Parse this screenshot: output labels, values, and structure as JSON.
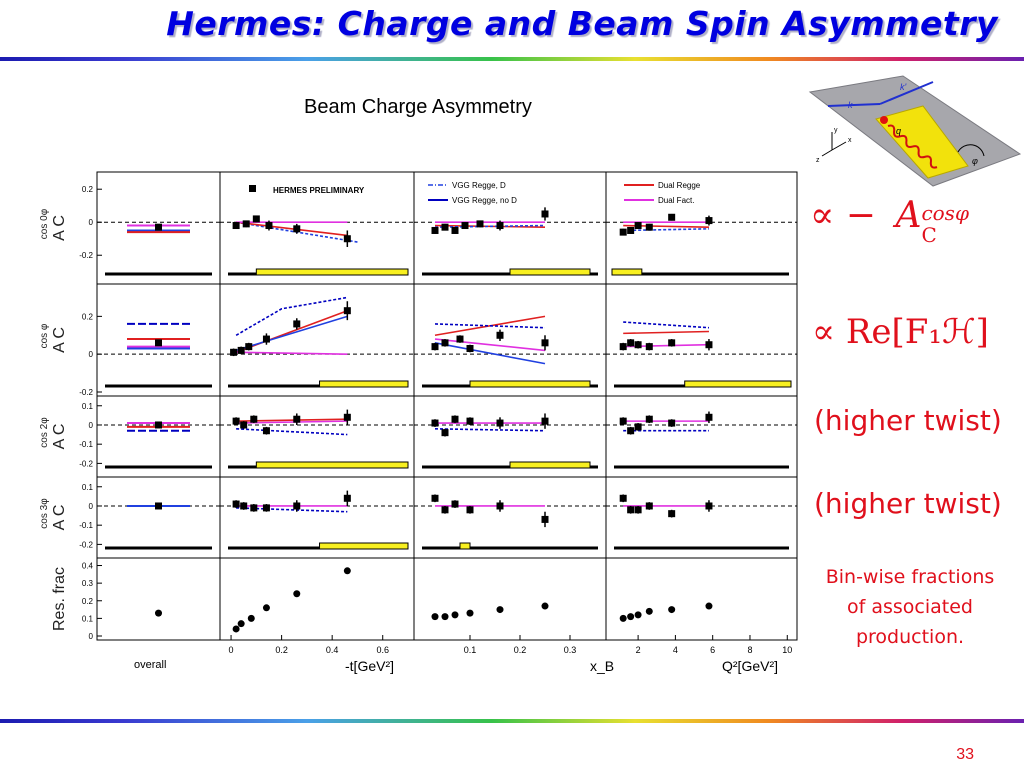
{
  "slide": {
    "title": "Hermes: Charge and Beam Spin Asymmetry",
    "subtitle": "Beam Charge Asymmetry",
    "page_number": "33"
  },
  "annotations": {
    "row1_formula_prefix": "∝ −",
    "row1_formula_symbol": "A",
    "row1_formula_sup": "cosφ",
    "row1_formula_sub": "C",
    "row2_formula": "∝  Re[F₁ℋ]",
    "row3": "(higher twist)",
    "row4": "(higher twist)",
    "row5_line1": "Bin-wise fractions",
    "row5_line2": "of associated",
    "row5_line3": "production."
  },
  "figure": {
    "preliminary_label": "HERMES PRELIMINARY",
    "legend_col2_a": "VGG Regge, D",
    "legend_col2_b": "VGG Regge, no D",
    "legend_col3_a": "Dual Regge",
    "legend_col3_b": "Dual Fact.",
    "row_labels": [
      {
        "base": "A",
        "sub": "C",
        "sup": "cos 0φ"
      },
      {
        "base": "A",
        "sub": "C",
        "sup": "cos φ"
      },
      {
        "base": "A",
        "sub": "C",
        "sup": "cos 2φ"
      },
      {
        "base": "A",
        "sub": "C",
        "sup": "cos 3φ"
      },
      {
        "base": "Res. frac",
        "sub": "",
        "sup": ""
      }
    ],
    "x_axis_labels": [
      "overall",
      "-t[GeV²]",
      "x_B",
      "Q²[GeV²]"
    ],
    "x_ticks": [
      [],
      [
        "0",
        "0.2",
        "0.4",
        "0.6"
      ],
      [
        "0.1",
        "0.2",
        "0.3"
      ],
      [
        "2",
        "4",
        "6",
        "8",
        "10"
      ]
    ]
  },
  "chart_data": {
    "type": "scatter",
    "panels_layout": "5 rows × 4 columns",
    "rows": [
      {
        "quantity": "A_C^cos0φ",
        "y_ticks": [
          "0.2",
          "0",
          "-0.2"
        ],
        "ylim": [
          -0.35,
          0.28
        ],
        "columns": [
          {
            "x": [
              0.5
            ],
            "y": [
              -0.03
            ],
            "yerr": [
              0.01
            ]
          },
          {
            "x": [
              0.02,
              0.06,
              0.1,
              0.15,
              0.26,
              0.46
            ],
            "y": [
              -0.02,
              -0.01,
              0.02,
              -0.02,
              -0.04,
              -0.1
            ],
            "yerr": [
              0.02,
              0.02,
              0.02,
              0.03,
              0.03,
              0.05
            ]
          },
          {
            "x": [
              0.03,
              0.05,
              0.07,
              0.09,
              0.12,
              0.16,
              0.25
            ],
            "y": [
              -0.05,
              -0.03,
              -0.05,
              -0.02,
              -0.01,
              -0.02,
              0.05
            ],
            "yerr": [
              0.02,
              0.02,
              0.02,
              0.02,
              0.02,
              0.03,
              0.04
            ]
          },
          {
            "x": [
              1.2,
              1.6,
              2.0,
              2.6,
              3.8,
              5.8
            ],
            "y": [
              -0.06,
              -0.05,
              -0.02,
              -0.03,
              0.03,
              0.01
            ],
            "yerr": [
              0.02,
              0.02,
              0.02,
              0.02,
              0.02,
              0.03
            ]
          }
        ]
      },
      {
        "quantity": "A_C^cosφ",
        "y_ticks": [
          "0.2",
          "0",
          "-0.2"
        ],
        "ylim": [
          -0.2,
          0.35
        ],
        "columns": [
          {
            "x": [
              0.5
            ],
            "y": [
              0.06
            ],
            "yerr": [
              0.01
            ]
          },
          {
            "x": [
              0.01,
              0.04,
              0.07,
              0.14,
              0.26,
              0.46
            ],
            "y": [
              0.01,
              0.02,
              0.04,
              0.08,
              0.16,
              0.23
            ],
            "yerr": [
              0.02,
              0.02,
              0.02,
              0.03,
              0.03,
              0.05
            ]
          },
          {
            "x": [
              0.03,
              0.05,
              0.08,
              0.1,
              0.16,
              0.25
            ],
            "y": [
              0.04,
              0.06,
              0.08,
              0.03,
              0.1,
              0.06
            ],
            "yerr": [
              0.02,
              0.02,
              0.02,
              0.02,
              0.03,
              0.04
            ]
          },
          {
            "x": [
              1.2,
              1.6,
              2.0,
              2.6,
              3.8,
              5.8
            ],
            "y": [
              0.04,
              0.06,
              0.05,
              0.04,
              0.06,
              0.05
            ],
            "yerr": [
              0.02,
              0.02,
              0.02,
              0.02,
              0.02,
              0.03
            ]
          }
        ]
      },
      {
        "quantity": "A_C^cos2φ",
        "y_ticks": [
          "0.1",
          "0",
          "-0.1",
          "-0.2"
        ],
        "ylim": [
          -0.25,
          0.13
        ],
        "columns": [
          {
            "x": [
              0.5
            ],
            "y": [
              0.0
            ],
            "yerr": [
              0.01
            ]
          },
          {
            "x": [
              0.02,
              0.05,
              0.09,
              0.14,
              0.26,
              0.46
            ],
            "y": [
              0.02,
              0.0,
              0.03,
              -0.03,
              0.03,
              0.04
            ],
            "yerr": [
              0.02,
              0.02,
              0.02,
              0.02,
              0.03,
              0.04
            ]
          },
          {
            "x": [
              0.03,
              0.05,
              0.07,
              0.1,
              0.16,
              0.25
            ],
            "y": [
              0.01,
              -0.04,
              0.03,
              0.02,
              0.01,
              0.02
            ],
            "yerr": [
              0.02,
              0.02,
              0.02,
              0.02,
              0.03,
              0.04
            ]
          },
          {
            "x": [
              1.2,
              1.6,
              2.0,
              2.6,
              3.8,
              5.8
            ],
            "y": [
              0.02,
              -0.03,
              -0.01,
              0.03,
              0.01,
              0.04
            ],
            "yerr": [
              0.02,
              0.02,
              0.02,
              0.02,
              0.02,
              0.03
            ]
          }
        ]
      },
      {
        "quantity": "A_C^cos3φ",
        "y_ticks": [
          "0.1",
          "0",
          "-0.1",
          "-0.2"
        ],
        "ylim": [
          -0.25,
          0.13
        ],
        "columns": [
          {
            "x": [
              0.5
            ],
            "y": [
              0.0
            ],
            "yerr": [
              0.01
            ]
          },
          {
            "x": [
              0.02,
              0.05,
              0.09,
              0.14,
              0.26,
              0.46
            ],
            "y": [
              0.01,
              0.0,
              -0.01,
              -0.01,
              0.0,
              0.04
            ],
            "yerr": [
              0.02,
              0.02,
              0.02,
              0.02,
              0.03,
              0.04
            ]
          },
          {
            "x": [
              0.03,
              0.05,
              0.07,
              0.1,
              0.16,
              0.25
            ],
            "y": [
              0.04,
              -0.02,
              0.01,
              -0.02,
              0.0,
              -0.07
            ],
            "yerr": [
              0.02,
              0.02,
              0.02,
              0.02,
              0.03,
              0.04
            ]
          },
          {
            "x": [
              1.2,
              1.6,
              2.0,
              2.6,
              3.8,
              5.8
            ],
            "y": [
              0.04,
              -0.02,
              -0.02,
              0.0,
              -0.04,
              0.0
            ],
            "yerr": [
              0.02,
              0.02,
              0.02,
              0.02,
              0.02,
              0.03
            ]
          }
        ]
      },
      {
        "quantity": "Res. frac",
        "y_ticks": [
          "0.4",
          "0.3",
          "0.2",
          "0.1",
          "0"
        ],
        "ylim": [
          0,
          0.42
        ],
        "columns": [
          {
            "x": [
              0.5
            ],
            "y": [
              0.13
            ],
            "yerr": [
              0
            ]
          },
          {
            "x": [
              0.02,
              0.04,
              0.08,
              0.14,
              0.26,
              0.46
            ],
            "y": [
              0.04,
              0.07,
              0.1,
              0.16,
              0.24,
              0.37
            ],
            "yerr": [
              0,
              0,
              0,
              0,
              0,
              0
            ]
          },
          {
            "x": [
              0.03,
              0.05,
              0.07,
              0.1,
              0.16,
              0.25
            ],
            "y": [
              0.11,
              0.11,
              0.12,
              0.13,
              0.15,
              0.17
            ],
            "yerr": [
              0,
              0,
              0,
              0,
              0,
              0
            ]
          },
          {
            "x": [
              1.2,
              1.6,
              2.0,
              2.6,
              3.8,
              5.8
            ],
            "y": [
              0.1,
              0.11,
              0.12,
              0.14,
              0.15,
              0.17
            ],
            "yerr": [
              0,
              0,
              0,
              0,
              0,
              0
            ]
          }
        ]
      }
    ],
    "x_ranges": [
      [
        0,
        1
      ],
      [
        -0.02,
        0.7
      ],
      [
        0.0,
        0.36
      ],
      [
        0.6,
        10.2
      ]
    ]
  },
  "colors": {
    "title": "#0000e0",
    "accent_red": "#e0101c",
    "data_points": "#000000",
    "vgg_d": "#2040e0",
    "vgg_no_d": "#0000c0",
    "dual_regge": "#e02020",
    "dual_fact": "#e030e0",
    "systematic_band": "#f8f020",
    "diagram_plane": "#a8a8ac",
    "diagram_yellow": "#f0e010"
  },
  "kinematics_diagram": {
    "labels": [
      "k",
      "k'",
      "q",
      "φ",
      "x",
      "y",
      "z"
    ]
  }
}
